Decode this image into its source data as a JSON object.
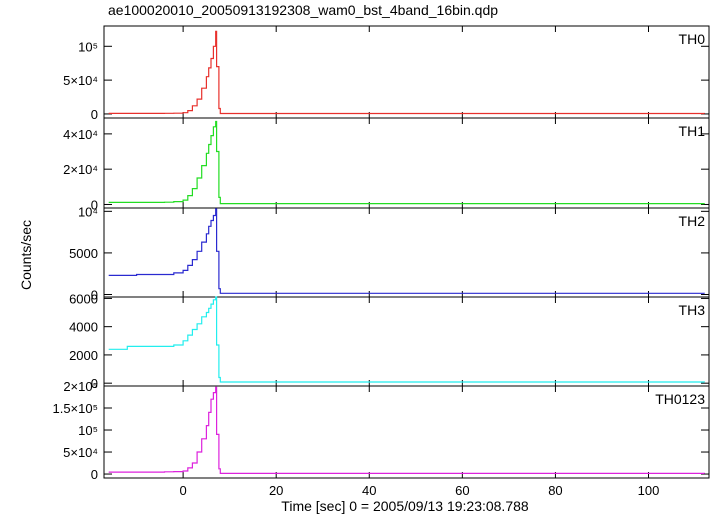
{
  "header": {
    "title": "ae100020010_20050913192308_wam0_bst_4band_16bin.qdp"
  },
  "chart_data": {
    "type": "line",
    "layout": "stacked-panels",
    "xlabel": "Time [sec] 0 = 2005/09/13 19:23:08.788",
    "ylabel": "Counts/sec",
    "xlim": [
      -17,
      113
    ],
    "x_ticks": [
      0,
      20,
      40,
      60,
      80,
      100
    ],
    "x_tick_labels": [
      "0",
      "20",
      "40",
      "60",
      "80",
      "100"
    ],
    "line_style": "step",
    "panels": [
      {
        "name": "TH0",
        "color": "#e8302c",
        "ylim": [
          -6000,
          130000
        ],
        "y_ticks": [
          0,
          50000,
          100000
        ],
        "y_tick_labels": [
          "0",
          "5×10⁴",
          "10⁵"
        ],
        "x": [
          -16,
          -4,
          -2,
          0,
          1,
          2,
          3,
          4,
          5,
          5.5,
          6,
          6.5,
          7,
          7.2,
          7.7,
          8,
          112
        ],
        "y": [
          800,
          900,
          1100,
          1800,
          5000,
          12000,
          22000,
          38000,
          55000,
          68000,
          82000,
          100000,
          122000,
          70000,
          8000,
          600,
          500
        ]
      },
      {
        "name": "TH1",
        "color": "#22dd22",
        "ylim": [
          -2000,
          49000
        ],
        "y_ticks": [
          0,
          20000,
          40000
        ],
        "y_tick_labels": [
          "0",
          "2×10⁴",
          "4×10⁴"
        ],
        "x": [
          -16,
          -4,
          -2,
          0,
          1,
          2,
          3,
          4,
          5,
          5.5,
          6,
          6.5,
          7,
          7.2,
          7.7,
          8,
          112
        ],
        "y": [
          1200,
          1300,
          1600,
          2500,
          5000,
          9000,
          15000,
          22000,
          29000,
          34000,
          39000,
          44000,
          47000,
          30000,
          4000,
          500,
          400
        ]
      },
      {
        "name": "TH2",
        "color": "#2a2ad0",
        "ylim": [
          -300,
          10400
        ],
        "y_ticks": [
          0,
          5000,
          10000
        ],
        "y_tick_labels": [
          "0",
          "5000",
          "10⁴"
        ],
        "x": [
          -16,
          -10,
          -5,
          -2,
          0,
          1,
          2,
          3,
          4,
          5,
          5.5,
          6,
          6.5,
          7,
          7.2,
          7.7,
          8,
          112
        ],
        "y": [
          2300,
          2400,
          2400,
          2600,
          2900,
          3500,
          4200,
          5200,
          6300,
          7300,
          8200,
          8900,
          9500,
          10300,
          5200,
          700,
          150,
          120
        ]
      },
      {
        "name": "TH3",
        "color": "#22eeee",
        "ylim": [
          -200,
          6100
        ],
        "y_ticks": [
          0,
          2000,
          4000,
          6000
        ],
        "y_tick_labels": [
          "0",
          "2000",
          "4000",
          "6000"
        ],
        "x": [
          -16,
          -12,
          -8,
          -4,
          -2,
          0,
          1,
          2,
          3,
          4,
          5,
          5.5,
          6,
          6.5,
          7,
          7.2,
          7.7,
          8,
          112
        ],
        "y": [
          2400,
          2600,
          2600,
          2600,
          2700,
          3000,
          3400,
          3800,
          4200,
          4700,
          5000,
          5300,
          5600,
          5900,
          6100,
          2700,
          400,
          80,
          60
        ]
      },
      {
        "name": "TH0123",
        "color": "#dd22dd",
        "ylim": [
          -9000,
          200000
        ],
        "y_ticks": [
          0,
          50000,
          100000,
          150000,
          200000
        ],
        "y_tick_labels": [
          "0",
          "5×10⁴",
          "10⁵",
          "1.5×10⁵",
          "2×10⁵"
        ],
        "x": [
          -16,
          -4,
          -2,
          0,
          1,
          2,
          3,
          4,
          5,
          5.5,
          6,
          6.5,
          7,
          7.2,
          7.7,
          8,
          112
        ],
        "y": [
          4500,
          5000,
          5500,
          7000,
          14000,
          25000,
          50000,
          80000,
          110000,
          140000,
          170000,
          185000,
          197000,
          90000,
          12000,
          1500,
          1200
        ]
      }
    ]
  }
}
